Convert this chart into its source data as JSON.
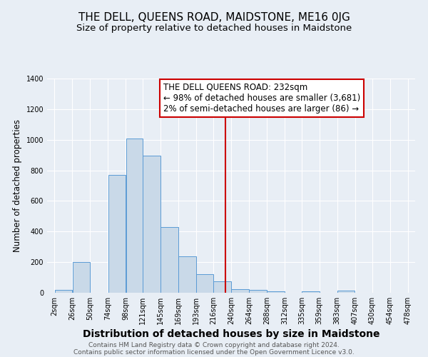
{
  "title": "THE DELL, QUEENS ROAD, MAIDSTONE, ME16 0JG",
  "subtitle": "Size of property relative to detached houses in Maidstone",
  "xlabel": "Distribution of detached houses by size in Maidstone",
  "ylabel": "Number of detached properties",
  "bar_left_edges": [
    2,
    26,
    50,
    74,
    98,
    121,
    145,
    169,
    193,
    216,
    240,
    264,
    288,
    312,
    335,
    359,
    383,
    407,
    430,
    454
  ],
  "bar_widths": [
    24,
    24,
    24,
    24,
    23,
    24,
    24,
    24,
    23,
    24,
    24,
    24,
    24,
    23,
    24,
    24,
    24,
    23,
    24,
    24
  ],
  "bar_heights": [
    20,
    200,
    0,
    770,
    1010,
    895,
    430,
    240,
    120,
    75,
    25,
    20,
    10,
    0,
    10,
    0,
    15,
    0,
    0,
    0
  ],
  "bar_color": "#c9d9e8",
  "bar_edgecolor": "#5b9bd5",
  "vline_x": 232,
  "vline_color": "#cc0000",
  "annotation_line1": "THE DELL QUEENS ROAD: 232sqm",
  "annotation_line2": "← 98% of detached houses are smaller (3,681)",
  "annotation_line3": "2% of semi-detached houses are larger (86) →",
  "annotation_box_edgecolor": "#cc0000",
  "tick_labels": [
    "2sqm",
    "26sqm",
    "50sqm",
    "74sqm",
    "98sqm",
    "121sqm",
    "145sqm",
    "169sqm",
    "193sqm",
    "216sqm",
    "240sqm",
    "264sqm",
    "288sqm",
    "312sqm",
    "335sqm",
    "359sqm",
    "383sqm",
    "407sqm",
    "430sqm",
    "454sqm",
    "478sqm"
  ],
  "ylim": [
    0,
    1400
  ],
  "yticks": [
    0,
    200,
    400,
    600,
    800,
    1000,
    1200,
    1400
  ],
  "background_color": "#e8eef5",
  "plot_background_color": "#e8eef5",
  "footer_line1": "Contains HM Land Registry data © Crown copyright and database right 2024.",
  "footer_line2": "Contains public sector information licensed under the Open Government Licence v3.0.",
  "title_fontsize": 11,
  "subtitle_fontsize": 9.5,
  "xlabel_fontsize": 10,
  "ylabel_fontsize": 8.5,
  "tick_fontsize": 7,
  "footer_fontsize": 6.5,
  "annot_fontsize": 8.5
}
